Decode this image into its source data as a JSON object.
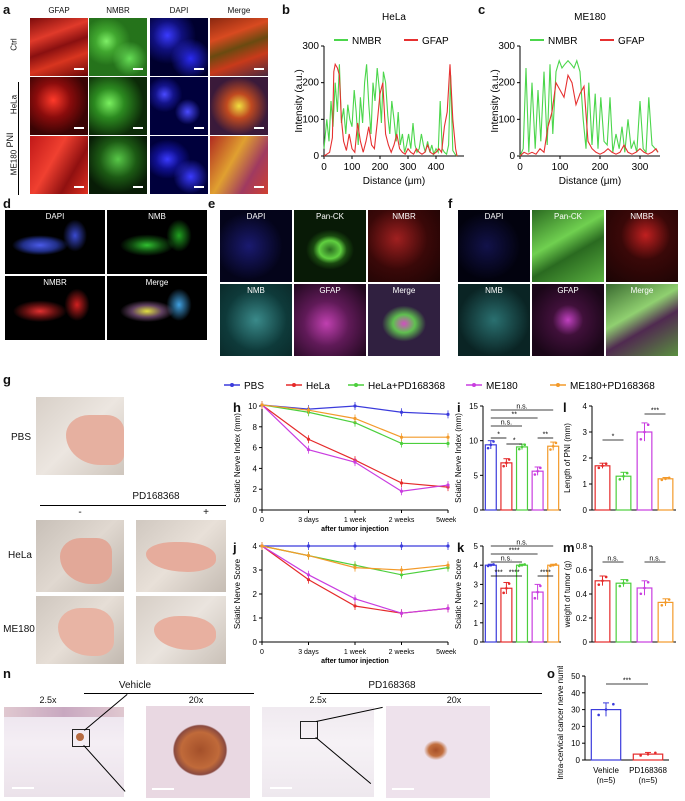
{
  "panel_labels": [
    "a",
    "b",
    "c",
    "d",
    "e",
    "f",
    "g",
    "h",
    "i",
    "j",
    "k",
    "l",
    "m",
    "n",
    "o"
  ],
  "panel_a": {
    "columns": [
      "GFAP",
      "NMBR",
      "DAPI",
      "Merge"
    ],
    "rows": [
      "Ctrl",
      "HeLa",
      "ME180"
    ],
    "group_label": "PNI"
  },
  "panel_d": {
    "labels": [
      "DAPI",
      "NMB",
      "NMBR",
      "Merge"
    ]
  },
  "panel_e": {
    "labels": [
      "DAPI",
      "Pan-CK",
      "NMBR",
      "NMB",
      "GFAP",
      "Merge"
    ]
  },
  "panel_f": {
    "labels": [
      "DAPI",
      "Pan-CK",
      "NMBR",
      "NMB",
      "GFAP",
      "Merge"
    ]
  },
  "panel_g": {
    "rows": [
      "PBS",
      "HeLa",
      "ME180"
    ],
    "treatment": "PD168368",
    "minus": "-",
    "plus": "+"
  },
  "legend": {
    "items": [
      {
        "name": "PBS",
        "color": "#3b3bdc"
      },
      {
        "name": "HeLa",
        "color": "#e52a2a"
      },
      {
        "name": "HeLa+PD168368",
        "color": "#4ccf3c"
      },
      {
        "name": "ME180",
        "color": "#c93de0"
      },
      {
        "name": "ME180+PD168368",
        "color": "#f39a2a"
      }
    ]
  },
  "panel_n": {
    "groups": [
      "Vehicle",
      "PD168368"
    ],
    "magnifications": [
      "2.5x",
      "20x",
      "2.5x",
      "20x"
    ]
  },
  "chart_data": [
    {
      "id": "b",
      "type": "line",
      "title": "HeLa",
      "xlabel": "Distance (μm)",
      "ylabel": "Intensity (a.u.)",
      "xlim": [
        0,
        500
      ],
      "ylim": [
        0,
        300
      ],
      "xticks": [
        0,
        100,
        200,
        300,
        400
      ],
      "yticks": [
        0,
        100,
        200,
        300
      ],
      "series": [
        {
          "name": "NMBR",
          "color": "#4cd64c",
          "x": [
            0,
            10,
            18,
            25,
            32,
            40,
            48,
            55,
            62,
            70,
            78,
            85,
            92,
            100,
            108,
            115,
            122,
            130,
            138,
            145,
            152,
            160,
            168,
            175,
            182,
            190,
            198,
            205,
            212,
            220,
            228,
            235,
            242,
            250,
            258,
            265,
            272,
            280,
            288,
            295,
            302,
            310,
            318,
            325,
            332,
            340,
            348,
            355,
            362,
            370,
            378,
            385,
            392,
            400,
            408,
            415,
            422,
            430,
            438,
            445,
            452,
            460,
            468,
            475
          ],
          "values": [
            20,
            100,
            40,
            150,
            80,
            200,
            120,
            250,
            90,
            130,
            60,
            140,
            100,
            80,
            180,
            120,
            30,
            160,
            90,
            200,
            250,
            140,
            60,
            200,
            150,
            240,
            180,
            90,
            230,
            200,
            110,
            60,
            150,
            100,
            40,
            120,
            30,
            60,
            10,
            30,
            60,
            20,
            90,
            30,
            10,
            20,
            60,
            30,
            10,
            40,
            10,
            30,
            5,
            20,
            10,
            150,
            20,
            10,
            5,
            30,
            220,
            15,
            5,
            0
          ]
        },
        {
          "name": "GFAP",
          "color": "#e63030",
          "x": [
            0,
            10,
            20,
            30,
            35,
            40,
            48,
            55,
            62,
            70,
            80,
            90,
            100,
            110,
            120,
            130,
            140,
            150,
            160,
            170,
            180,
            190,
            200,
            210,
            220,
            230,
            240,
            250,
            260,
            270,
            280,
            290,
            300,
            310,
            320,
            330,
            340,
            350,
            360,
            370,
            380,
            390,
            400,
            410,
            420,
            430,
            440,
            450,
            460,
            470,
            475
          ],
          "values": [
            0,
            5,
            10,
            50,
            230,
            250,
            240,
            220,
            100,
            40,
            15,
            60,
            20,
            10,
            90,
            40,
            10,
            40,
            80,
            30,
            20,
            90,
            170,
            200,
            60,
            30,
            10,
            30,
            60,
            20,
            10,
            5,
            20,
            10,
            5,
            20,
            10,
            5,
            10,
            30,
            10,
            5,
            10,
            20,
            10,
            80,
            120,
            250,
            100,
            20,
            0
          ]
        }
      ]
    },
    {
      "id": "c",
      "type": "line",
      "title": "ME180",
      "xlabel": "Distance (μm)",
      "ylabel": "Intensity (a.u.)",
      "xlim": [
        0,
        350
      ],
      "ylim": [
        0,
        300
      ],
      "xticks": [
        0,
        100,
        200,
        300
      ],
      "yticks": [
        0,
        100,
        200,
        300
      ],
      "series": [
        {
          "name": "NMBR",
          "color": "#4cd64c",
          "x": [
            0,
            8,
            15,
            22,
            30,
            38,
            45,
            52,
            60,
            68,
            75,
            82,
            90,
            98,
            105,
            112,
            120,
            128,
            135,
            142,
            150,
            158,
            165,
            172,
            180,
            188,
            195,
            202,
            210,
            218,
            225,
            232,
            240,
            248,
            255,
            262,
            270,
            278,
            285,
            292,
            300,
            308,
            315,
            322,
            330,
            338,
            345
          ],
          "values": [
            0,
            20,
            240,
            10,
            200,
            20,
            180,
            40,
            230,
            30,
            250,
            60,
            230,
            260,
            240,
            250,
            260,
            250,
            240,
            260,
            230,
            100,
            20,
            200,
            30,
            170,
            20,
            160,
            40,
            30,
            160,
            10,
            60,
            20,
            80,
            10,
            100,
            20,
            40,
            10,
            150,
            20,
            10,
            160,
            30,
            20,
            10
          ]
        },
        {
          "name": "GFAP",
          "color": "#e63030",
          "x": [
            0,
            10,
            20,
            30,
            40,
            50,
            60,
            70,
            80,
            90,
            100,
            110,
            120,
            130,
            140,
            150,
            160,
            170,
            180,
            190,
            200,
            210,
            220,
            230,
            240,
            250,
            260,
            270,
            280,
            290,
            300,
            310,
            320,
            330,
            340,
            345
          ],
          "values": [
            0,
            10,
            5,
            10,
            5,
            20,
            10,
            80,
            120,
            200,
            180,
            160,
            220,
            200,
            140,
            170,
            190,
            40,
            20,
            10,
            5,
            10,
            20,
            10,
            5,
            10,
            30,
            10,
            5,
            10,
            20,
            10,
            5,
            10,
            20,
            10
          ]
        }
      ]
    },
    {
      "id": "h",
      "type": "line",
      "xlabel": "after tumor injection",
      "ylabel": "Sciatic Nerve Index (mm)",
      "categories": [
        "0",
        "3 days",
        "1 week",
        "2 weeks",
        "5weeks"
      ],
      "ylim": [
        0,
        10
      ],
      "yticks": [
        0,
        2,
        4,
        6,
        8,
        10
      ],
      "series": [
        {
          "name": "PBS",
          "values": [
            10.1,
            9.7,
            10.0,
            9.4,
            9.2
          ]
        },
        {
          "name": "HeLa",
          "values": [
            10.1,
            6.8,
            4.8,
            2.6,
            2.2
          ]
        },
        {
          "name": "HeLa+PD168368",
          "values": [
            10.1,
            9.4,
            8.4,
            6.4,
            6.4
          ]
        },
        {
          "name": "ME180",
          "values": [
            10.1,
            5.8,
            4.6,
            1.8,
            2.4
          ]
        },
        {
          "name": "ME180+PD168368",
          "values": [
            10.1,
            9.6,
            8.8,
            7.0,
            7.0
          ]
        }
      ]
    },
    {
      "id": "j",
      "type": "line",
      "xlabel": "after tumor injection",
      "ylabel": "Sciatic Nerve Score",
      "categories": [
        "0",
        "3 days",
        "1 week",
        "2 weeks",
        "5weeks"
      ],
      "ylim": [
        0,
        4
      ],
      "yticks": [
        0,
        1,
        2,
        3,
        4
      ],
      "series": [
        {
          "name": "PBS",
          "values": [
            4,
            4,
            4,
            4,
            4
          ]
        },
        {
          "name": "HeLa",
          "values": [
            4,
            2.6,
            1.5,
            1.2,
            1.4
          ]
        },
        {
          "name": "HeLa+PD168368",
          "values": [
            4,
            3.6,
            3.2,
            2.8,
            3.1
          ]
        },
        {
          "name": "ME180",
          "values": [
            4,
            2.8,
            1.8,
            1.2,
            1.4
          ]
        },
        {
          "name": "ME180+PD168368",
          "values": [
            4,
            3.6,
            3.1,
            3.0,
            3.2
          ]
        }
      ]
    },
    {
      "id": "i",
      "type": "bar",
      "ylabel": "Sciatic Nerve Index (mm)",
      "ylim": [
        0,
        15
      ],
      "yticks": [
        0,
        5,
        10,
        15
      ],
      "values": [
        9.4,
        6.8,
        9.1,
        5.6,
        9.2
      ],
      "errors": [
        0.6,
        0.6,
        0.4,
        0.6,
        0.6
      ],
      "significance": [
        "n.s.",
        "**",
        "n.s.",
        "*",
        "*",
        "**"
      ]
    },
    {
      "id": "k",
      "type": "bar",
      "ylabel": "Sciatic Nerve Score",
      "ylim": [
        0,
        5
      ],
      "yticks": [
        0,
        1,
        2,
        3,
        4,
        5
      ],
      "values": [
        4.0,
        2.8,
        4.0,
        2.6,
        4.0
      ],
      "errors": [
        0.05,
        0.3,
        0.05,
        0.4,
        0.05
      ],
      "significance": [
        "n.s.",
        "****",
        "n.s.",
        "***",
        "****",
        "****"
      ]
    },
    {
      "id": "l",
      "type": "bar",
      "ylabel": "Length of PNI (mm)",
      "ylim": [
        0,
        4
      ],
      "yticks": [
        0,
        1,
        2,
        3,
        4
      ],
      "values": [
        1.7,
        1.3,
        3.0,
        1.2
      ],
      "errors": [
        0.1,
        0.15,
        0.35,
        0.05
      ],
      "significance": [
        "*",
        "***"
      ]
    },
    {
      "id": "m",
      "type": "bar",
      "ylabel": "weight of tumor (g)",
      "ylim": [
        0,
        0.8
      ],
      "yticks": [
        0,
        0.2,
        0.4,
        0.6,
        0.8
      ],
      "values": [
        0.51,
        0.49,
        0.45,
        0.33
      ],
      "errors": [
        0.04,
        0.03,
        0.06,
        0.03
      ],
      "significance": [
        "n.s.",
        "n.s."
      ]
    },
    {
      "id": "o",
      "type": "bar",
      "ylabel": "Intra-cervical cancer nerve number",
      "categories": [
        "Vehicle",
        "PD168368"
      ],
      "sublabels": [
        "(n=5)",
        "(n=5)"
      ],
      "ylim": [
        0,
        50
      ],
      "yticks": [
        0,
        10,
        20,
        30,
        40,
        50
      ],
      "values": [
        30,
        3.5
      ],
      "errors": [
        4,
        1
      ],
      "colors": [
        "#3b3bdc",
        "#e52a2a"
      ],
      "significance": [
        "***"
      ]
    }
  ]
}
